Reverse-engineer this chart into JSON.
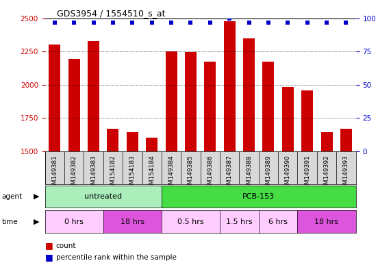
{
  "title": "GDS3954 / 1554510_s_at",
  "samples": [
    "GSM149381",
    "GSM149382",
    "GSM149383",
    "GSM154182",
    "GSM154183",
    "GSM154184",
    "GSM149384",
    "GSM149385",
    "GSM149386",
    "GSM149387",
    "GSM149388",
    "GSM149389",
    "GSM149390",
    "GSM149391",
    "GSM149392",
    "GSM149393"
  ],
  "counts": [
    2305,
    2195,
    2330,
    1670,
    1645,
    1600,
    2250,
    2248,
    2175,
    2480,
    2350,
    2175,
    1985,
    1960,
    1645,
    1670
  ],
  "percentile_ranks": [
    97,
    97,
    97,
    97,
    97,
    97,
    97,
    97,
    97,
    100,
    97,
    97,
    97,
    97,
    97,
    97
  ],
  "ylim_left": [
    1500,
    2500
  ],
  "ylim_right": [
    0,
    100
  ],
  "yticks_left": [
    1500,
    1750,
    2000,
    2250,
    2500
  ],
  "yticks_right": [
    0,
    25,
    50,
    75,
    100
  ],
  "bar_color": "#cc0000",
  "dot_color": "#0000cc",
  "bar_width": 0.6,
  "agent_groups": [
    {
      "label": "untreated",
      "start": 0,
      "end": 5,
      "color": "#aaeebb"
    },
    {
      "label": "PCB-153",
      "start": 6,
      "end": 15,
      "color": "#44dd44"
    }
  ],
  "time_groups": [
    {
      "label": "0 hrs",
      "start": 0,
      "end": 2,
      "color": "#ffccff"
    },
    {
      "label": "18 hrs",
      "start": 3,
      "end": 5,
      "color": "#dd55dd"
    },
    {
      "label": "0.5 hrs",
      "start": 6,
      "end": 8,
      "color": "#ffccff"
    },
    {
      "label": "1.5 hrs",
      "start": 9,
      "end": 10,
      "color": "#ffccff"
    },
    {
      "label": "6 hrs",
      "start": 11,
      "end": 12,
      "color": "#ffccff"
    },
    {
      "label": "18 hrs",
      "start": 13,
      "end": 15,
      "color": "#dd55dd"
    }
  ],
  "legend_count_color": "#cc0000",
  "legend_dot_color": "#0000cc",
  "left_label_color": "#cc0000",
  "right_label_color": "#0000cc",
  "xticklabel_bg": "#d8d8d8"
}
